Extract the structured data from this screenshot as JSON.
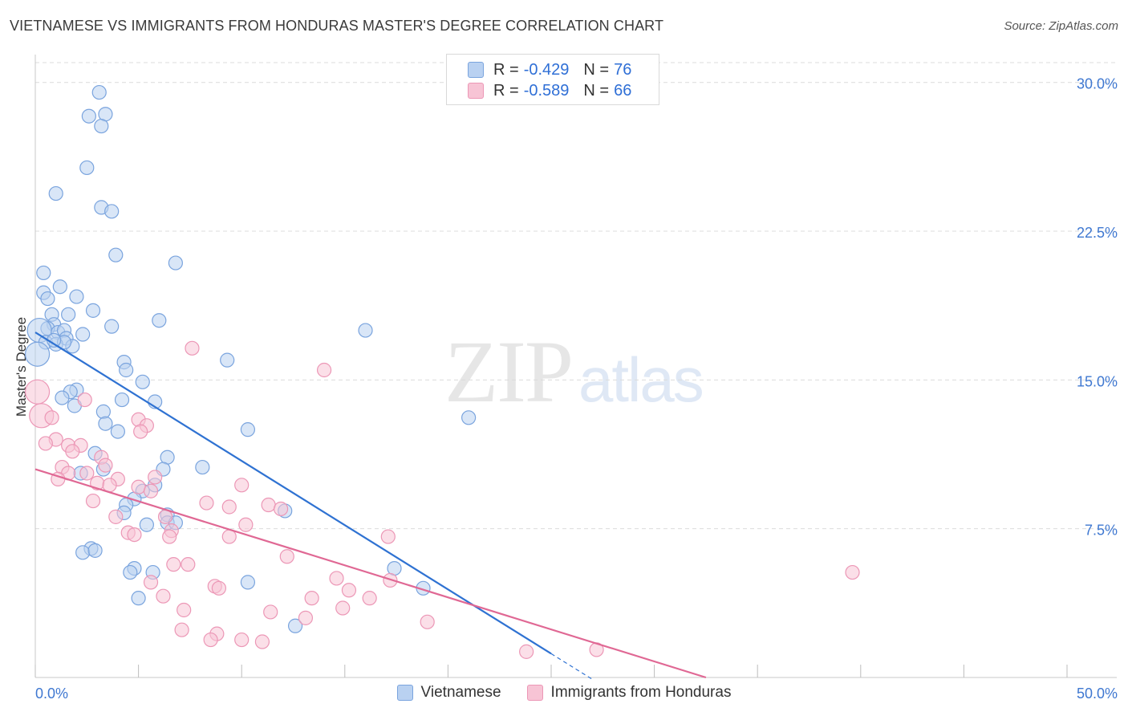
{
  "title": "VIETNAMESE VS IMMIGRANTS FROM HONDURAS MASTER'S DEGREE CORRELATION CHART",
  "source": "Source: ZipAtlas.com",
  "watermark": {
    "zip": "ZIP",
    "atlas": "atlas"
  },
  "legend_top": {
    "rows": [
      {
        "r_label": "R =",
        "r_value": "-0.429",
        "n_label": "N =",
        "n_value": "76"
      },
      {
        "r_label": "R =",
        "r_value": "-0.589",
        "n_label": "N =",
        "n_value": "66"
      }
    ]
  },
  "colors": {
    "blue_fill": "#b9d1f1",
    "blue_stroke": "#7aa4de",
    "blue_line": "#2f72d2",
    "pink_fill": "#f7c4d5",
    "pink_stroke": "#ec97b6",
    "pink_line": "#e06894",
    "grid": "#dcdcdc",
    "tick_label": "#3f78d1"
  },
  "chart_data": {
    "type": "scatter",
    "title": "VIETNAMESE VS IMMIGRANTS FROM HONDURAS MASTER'S DEGREE CORRELATION CHART",
    "xlabel": "",
    "ylabel": "Master's Degree",
    "xlim": [
      0,
      50
    ],
    "ylim": [
      0,
      31
    ],
    "x_tick_labels": [
      "0.0%",
      "50.0%"
    ],
    "y_ticks": [
      7.5,
      15.0,
      22.5,
      30.0
    ],
    "y_tick_labels": [
      "7.5%",
      "15.0%",
      "22.5%",
      "30.0%"
    ],
    "legend": [
      "Vietnamese",
      "Immigrants from Honduras"
    ],
    "series": [
      {
        "name": "Vietnamese",
        "r": -0.429,
        "n": 76,
        "trend": {
          "x0": 0,
          "y0": 17.4,
          "x1": 25.0,
          "y1": 1.2,
          "dash_to_x": 27.0
        },
        "points": [
          [
            3.1,
            29.5
          ],
          [
            2.6,
            28.3
          ],
          [
            3.4,
            28.4
          ],
          [
            3.2,
            27.8
          ],
          [
            2.5,
            25.7
          ],
          [
            1.0,
            24.4
          ],
          [
            3.2,
            23.7
          ],
          [
            3.7,
            23.5
          ],
          [
            3.9,
            21.3
          ],
          [
            6.8,
            20.9
          ],
          [
            0.4,
            20.4
          ],
          [
            1.2,
            19.7
          ],
          [
            0.4,
            19.4
          ],
          [
            0.6,
            19.1
          ],
          [
            2.0,
            19.2
          ],
          [
            2.8,
            18.5
          ],
          [
            0.8,
            18.3
          ],
          [
            1.6,
            18.3
          ],
          [
            0.9,
            17.8
          ],
          [
            0.6,
            17.6
          ],
          [
            6.0,
            18.0
          ],
          [
            3.7,
            17.7
          ],
          [
            0.2,
            17.5
          ],
          [
            1.1,
            17.4
          ],
          [
            1.4,
            17.5
          ],
          [
            2.3,
            17.3
          ],
          [
            1.5,
            17.1
          ],
          [
            0.5,
            16.9
          ],
          [
            1.0,
            16.8
          ],
          [
            1.8,
            16.7
          ],
          [
            16.0,
            17.5
          ],
          [
            0.1,
            16.3
          ],
          [
            9.3,
            16.0
          ],
          [
            4.3,
            15.9
          ],
          [
            4.4,
            15.5
          ],
          [
            5.2,
            14.9
          ],
          [
            2.0,
            14.5
          ],
          [
            1.7,
            14.4
          ],
          [
            1.3,
            14.1
          ],
          [
            4.2,
            14.0
          ],
          [
            5.8,
            13.9
          ],
          [
            1.9,
            13.7
          ],
          [
            3.3,
            13.4
          ],
          [
            21.0,
            13.1
          ],
          [
            3.4,
            12.8
          ],
          [
            4.0,
            12.4
          ],
          [
            10.3,
            12.5
          ],
          [
            2.9,
            11.3
          ],
          [
            6.4,
            11.1
          ],
          [
            8.1,
            10.6
          ],
          [
            3.3,
            10.5
          ],
          [
            6.2,
            10.5
          ],
          [
            2.2,
            10.3
          ],
          [
            5.8,
            9.7
          ],
          [
            5.2,
            9.4
          ],
          [
            4.8,
            9.0
          ],
          [
            4.4,
            8.7
          ],
          [
            4.3,
            8.3
          ],
          [
            12.1,
            8.4
          ],
          [
            6.4,
            8.2
          ],
          [
            5.4,
            7.7
          ],
          [
            6.4,
            7.8
          ],
          [
            6.8,
            7.8
          ],
          [
            2.7,
            6.5
          ],
          [
            2.3,
            6.3
          ],
          [
            2.9,
            6.4
          ],
          [
            4.8,
            5.5
          ],
          [
            4.6,
            5.3
          ],
          [
            5.7,
            5.3
          ],
          [
            10.3,
            4.8
          ],
          [
            17.4,
            5.5
          ],
          [
            18.8,
            4.5
          ],
          [
            5.0,
            4.0
          ],
          [
            12.6,
            2.6
          ],
          [
            1.4,
            16.9
          ],
          [
            0.9,
            17.0
          ]
        ]
      },
      {
        "name": "Immigrants from Honduras",
        "r": -0.589,
        "n": 66,
        "trend": {
          "x0": 0,
          "y0": 10.5,
          "x1": 32.5,
          "y1": 0.0
        },
        "points": [
          [
            0.1,
            14.4
          ],
          [
            0.3,
            13.2
          ],
          [
            0.8,
            13.1
          ],
          [
            7.6,
            16.6
          ],
          [
            14.0,
            15.5
          ],
          [
            2.4,
            14.0
          ],
          [
            5.0,
            13.0
          ],
          [
            5.4,
            12.7
          ],
          [
            5.1,
            12.4
          ],
          [
            1.0,
            12.0
          ],
          [
            0.5,
            11.8
          ],
          [
            1.6,
            11.7
          ],
          [
            2.2,
            11.7
          ],
          [
            1.8,
            11.4
          ],
          [
            3.2,
            11.1
          ],
          [
            3.4,
            10.7
          ],
          [
            1.3,
            10.6
          ],
          [
            1.6,
            10.3
          ],
          [
            2.5,
            10.3
          ],
          [
            1.1,
            10.0
          ],
          [
            4.0,
            10.0
          ],
          [
            5.8,
            10.1
          ],
          [
            3.0,
            9.8
          ],
          [
            3.6,
            9.7
          ],
          [
            5.0,
            9.6
          ],
          [
            5.6,
            9.4
          ],
          [
            10.0,
            9.7
          ],
          [
            2.8,
            8.9
          ],
          [
            8.3,
            8.8
          ],
          [
            9.4,
            8.6
          ],
          [
            11.3,
            8.7
          ],
          [
            11.9,
            8.5
          ],
          [
            3.9,
            8.1
          ],
          [
            6.3,
            8.1
          ],
          [
            10.2,
            7.7
          ],
          [
            4.5,
            7.3
          ],
          [
            6.6,
            7.4
          ],
          [
            4.8,
            7.2
          ],
          [
            6.5,
            7.1
          ],
          [
            9.4,
            7.1
          ],
          [
            17.1,
            7.1
          ],
          [
            12.2,
            6.1
          ],
          [
            6.7,
            5.7
          ],
          [
            7.4,
            5.7
          ],
          [
            14.6,
            5.0
          ],
          [
            5.6,
            4.8
          ],
          [
            17.2,
            4.9
          ],
          [
            8.7,
            4.6
          ],
          [
            8.9,
            4.5
          ],
          [
            39.6,
            5.3
          ],
          [
            6.2,
            4.1
          ],
          [
            13.4,
            4.0
          ],
          [
            15.2,
            4.4
          ],
          [
            14.9,
            3.5
          ],
          [
            7.2,
            3.4
          ],
          [
            11.4,
            3.3
          ],
          [
            13.1,
            3.0
          ],
          [
            19.0,
            2.8
          ],
          [
            7.1,
            2.4
          ],
          [
            8.8,
            2.2
          ],
          [
            8.5,
            1.9
          ],
          [
            10.0,
            1.9
          ],
          [
            11.0,
            1.8
          ],
          [
            23.8,
            1.3
          ],
          [
            27.2,
            1.4
          ],
          [
            16.2,
            4.0
          ]
        ]
      }
    ]
  }
}
